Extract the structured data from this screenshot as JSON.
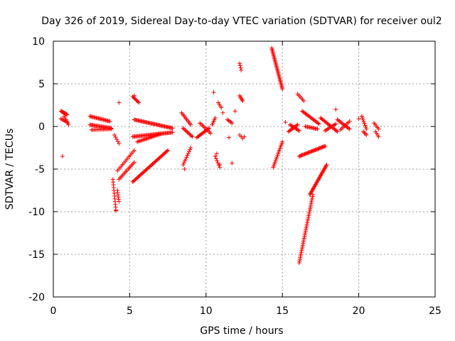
{
  "chart_data": {
    "type": "scatter",
    "title": "Day 326 of 2019, Sidereal Day-to-day VTEC variation (SDTVAR) for receiver oul2",
    "xlabel": "GPS time / hours",
    "ylabel": "SDTVAR / TECUs",
    "xlim": [
      0,
      25
    ],
    "ylim": [
      -20,
      10
    ],
    "xticks": [
      0,
      5,
      10,
      15,
      20,
      25
    ],
    "yticks": [
      -20,
      -15,
      -10,
      -5,
      0,
      5,
      10
    ],
    "grid": true,
    "marker": "+",
    "color": "#ff0000",
    "segments": [
      {
        "x0": 0.5,
        "y0": 1.8,
        "x1": 0.9,
        "y1": 1.4,
        "n": 10
      },
      {
        "x0": 0.5,
        "y0": 0.9,
        "x1": 0.9,
        "y1": 0.5,
        "n": 6
      },
      {
        "x0": 0.7,
        "y0": 1.2,
        "x1": 1.0,
        "y1": 0.2,
        "n": 6
      },
      {
        "x0": 2.4,
        "y0": 1.2,
        "x1": 3.7,
        "y1": 0.6,
        "n": 20
      },
      {
        "x0": 2.4,
        "y0": 0.2,
        "x1": 3.8,
        "y1": -0.2,
        "n": 22
      },
      {
        "x0": 2.5,
        "y0": -0.4,
        "x1": 3.8,
        "y1": -0.3,
        "n": 16
      },
      {
        "x0": 3.9,
        "y0": -6.2,
        "x1": 4.1,
        "y1": -9.8,
        "n": 12
      },
      {
        "x0": 4.2,
        "y0": -7.5,
        "x1": 4.3,
        "y1": -8.8,
        "n": 6
      },
      {
        "x0": 4.0,
        "y0": -1.0,
        "x1": 4.3,
        "y1": -2.0,
        "n": 5
      },
      {
        "x0": 4.2,
        "y0": -5.2,
        "x1": 5.3,
        "y1": -2.8,
        "n": 14
      },
      {
        "x0": 4.3,
        "y0": -6.2,
        "x1": 5.3,
        "y1": -4.2,
        "n": 14
      },
      {
        "x0": 5.2,
        "y0": -6.5,
        "x1": 7.5,
        "y1": -2.8,
        "n": 40
      },
      {
        "x0": 5.2,
        "y0": -1.2,
        "x1": 7.8,
        "y1": -0.7,
        "n": 40
      },
      {
        "x0": 5.3,
        "y0": 0.8,
        "x1": 7.8,
        "y1": -0.2,
        "n": 40
      },
      {
        "x0": 5.2,
        "y0": 3.5,
        "x1": 5.6,
        "y1": 2.8,
        "n": 8
      },
      {
        "x0": 5.5,
        "y0": -1.8,
        "x1": 7.0,
        "y1": -0.9,
        "n": 20
      },
      {
        "x0": 8.4,
        "y0": 1.6,
        "x1": 9.0,
        "y1": 0.2,
        "n": 10
      },
      {
        "x0": 8.5,
        "y0": -0.2,
        "x1": 9.1,
        "y1": -1.2,
        "n": 10
      },
      {
        "x0": 8.5,
        "y0": -4.5,
        "x1": 9.0,
        "y1": -2.5,
        "n": 10
      },
      {
        "x0": 9.4,
        "y0": -1.3,
        "x1": 10.2,
        "y1": -0.2,
        "n": 14
      },
      {
        "x0": 9.6,
        "y0": 0.4,
        "x1": 10.3,
        "y1": -0.8,
        "n": 10
      },
      {
        "x0": 10.4,
        "y0": 0.2,
        "x1": 10.6,
        "y1": 1.0,
        "n": 5
      },
      {
        "x0": 10.6,
        "y0": -3.5,
        "x1": 10.9,
        "y1": -4.8,
        "n": 6
      },
      {
        "x0": 10.8,
        "y0": 2.8,
        "x1": 11.0,
        "y1": 2.2,
        "n": 4
      },
      {
        "x0": 11.4,
        "y0": 0.8,
        "x1": 11.7,
        "y1": 0.4,
        "n": 5
      },
      {
        "x0": 12.2,
        "y0": 3.6,
        "x1": 12.4,
        "y1": 3.0,
        "n": 5
      },
      {
        "x0": 12.2,
        "y0": 7.4,
        "x1": 12.3,
        "y1": 6.6,
        "n": 4
      },
      {
        "x0": 12.2,
        "y0": -1.0,
        "x1": 12.4,
        "y1": -1.4,
        "n": 3
      },
      {
        "x0": 14.3,
        "y0": 9.2,
        "x1": 15.0,
        "y1": 4.4,
        "n": 32
      },
      {
        "x0": 14.4,
        "y0": -4.8,
        "x1": 15.0,
        "y1": -1.8,
        "n": 16
      },
      {
        "x0": 15.4,
        "y0": -0.6,
        "x1": 16.0,
        "y1": 0.2,
        "n": 10
      },
      {
        "x0": 15.5,
        "y0": 0.2,
        "x1": 16.1,
        "y1": -0.5,
        "n": 10
      },
      {
        "x0": 16.0,
        "y0": 3.8,
        "x1": 16.4,
        "y1": 3.0,
        "n": 6
      },
      {
        "x0": 16.1,
        "y0": -16.0,
        "x1": 17.0,
        "y1": -8.0,
        "n": 40
      },
      {
        "x0": 16.8,
        "y0": -8.0,
        "x1": 17.9,
        "y1": -4.5,
        "n": 30
      },
      {
        "x0": 16.1,
        "y0": -3.5,
        "x1": 17.8,
        "y1": -2.3,
        "n": 30
      },
      {
        "x0": 16.3,
        "y0": 1.8,
        "x1": 17.4,
        "y1": 0.3,
        "n": 18
      },
      {
        "x0": 16.5,
        "y0": 0.0,
        "x1": 17.3,
        "y1": -0.3,
        "n": 12
      },
      {
        "x0": 17.5,
        "y0": 1.0,
        "x1": 18.6,
        "y1": -0.6,
        "n": 18
      },
      {
        "x0": 17.8,
        "y0": -0.5,
        "x1": 18.5,
        "y1": 0.3,
        "n": 10
      },
      {
        "x0": 18.6,
        "y0": 0.8,
        "x1": 19.4,
        "y1": -0.3,
        "n": 12
      },
      {
        "x0": 18.8,
        "y0": -0.4,
        "x1": 19.4,
        "y1": 0.6,
        "n": 8
      },
      {
        "x0": 20.2,
        "y0": 1.2,
        "x1": 20.5,
        "y1": -0.3,
        "n": 8
      },
      {
        "x0": 20.3,
        "y0": -0.6,
        "x1": 20.5,
        "y1": -1.0,
        "n": 4
      },
      {
        "x0": 21.0,
        "y0": 0.4,
        "x1": 21.3,
        "y1": -0.3,
        "n": 5
      },
      {
        "x0": 21.1,
        "y0": -0.6,
        "x1": 21.3,
        "y1": -1.2,
        "n": 4
      }
    ],
    "points": [
      [
        0.6,
        -3.5
      ],
      [
        4.1,
        -9.9
      ],
      [
        4.3,
        2.8
      ],
      [
        5.3,
        3.6
      ],
      [
        8.6,
        -5.0
      ],
      [
        10.5,
        4.0
      ],
      [
        10.7,
        -3.2
      ],
      [
        10.9,
        -4.5
      ],
      [
        11.5,
        -1.3
      ],
      [
        11.7,
        -4.3
      ],
      [
        11.9,
        1.8
      ],
      [
        11.1,
        1.6
      ],
      [
        12.5,
        -1.2
      ],
      [
        15.2,
        0.5
      ],
      [
        18.5,
        2.0
      ],
      [
        20.0,
        0.9
      ]
    ]
  }
}
